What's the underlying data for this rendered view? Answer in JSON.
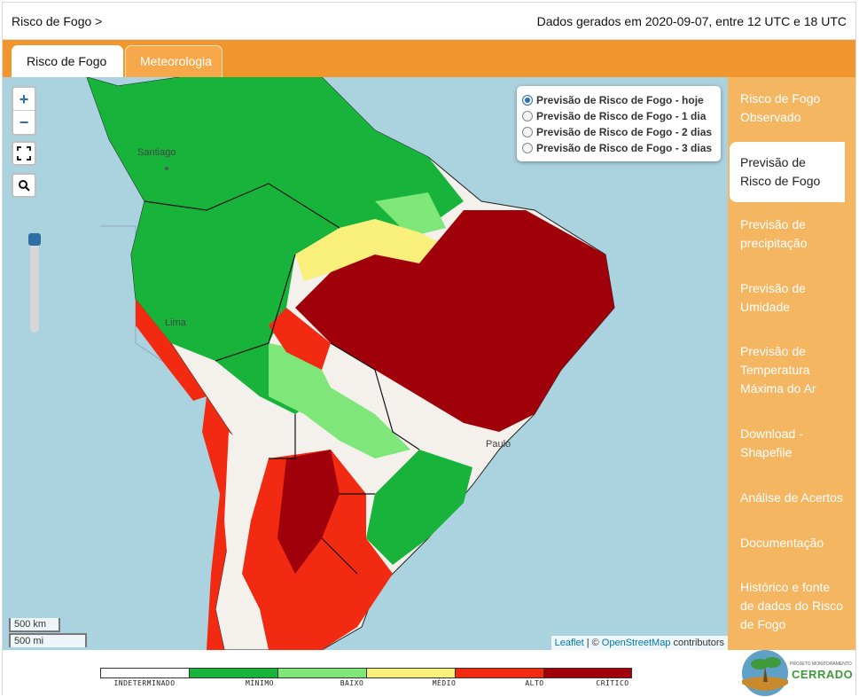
{
  "header": {
    "breadcrumb": "Risco de Fogo >",
    "generated": "Dados gerados em 2020-09-07, entre 12 UTC e 18 UTC"
  },
  "tabs": [
    {
      "label": "Risco de Fogo",
      "active": true
    },
    {
      "label": "Meteorologia",
      "active": false
    }
  ],
  "map": {
    "zoom_in": "+",
    "zoom_out": "−",
    "city_labels": [
      "Santiago",
      "Lima",
      "Paulo"
    ],
    "layer_options": [
      {
        "label": "Previsão de Risco de Fogo - hoje",
        "selected": true
      },
      {
        "label": "Previsão de Risco de Fogo - 1 dia",
        "selected": false
      },
      {
        "label": "Previsão de Risco de Fogo - 2 dias",
        "selected": false
      },
      {
        "label": "Previsão de Risco de Fogo - 3 dias",
        "selected": false
      }
    ],
    "scale_km": "500 km",
    "scale_mi": "500 mi",
    "attribution": {
      "leaflet": "Leaflet",
      "sep": "| ©",
      "osm": "OpenStreetMap",
      "suffix": "contributors"
    }
  },
  "sidebar": {
    "items": [
      {
        "label": "Risco de Fogo Observado",
        "active": false
      },
      {
        "label": "Previsão de Risco de Fogo",
        "active": true
      },
      {
        "label": "Previsão de precipitação",
        "active": false
      },
      {
        "label": "Previsão de Umidade",
        "active": false
      },
      {
        "label": "Previsão de Temperatura Máxima do Ar",
        "active": false
      },
      {
        "label": "Download - Shapefile",
        "active": false
      },
      {
        "label": "Análise de Acertos",
        "active": false
      },
      {
        "label": "Documentação",
        "active": false
      },
      {
        "label": "Histórico e fonte de dados do Risco de Fogo",
        "active": false
      }
    ]
  },
  "legend": [
    {
      "label": "INDETERMINADO",
      "color": "#ffffff"
    },
    {
      "label": "MÍNIMO",
      "color": "#17b33a"
    },
    {
      "label": "BAIXO",
      "color": "#7fe67a"
    },
    {
      "label": "MÉDIO",
      "color": "#f8f07a"
    },
    {
      "label": "ALTO",
      "color": "#f22a12"
    },
    {
      "label": "CRÍTICO",
      "color": "#a0000a"
    }
  ],
  "logo": {
    "subtitle": "PROJETO MONITORAMENTO",
    "name": "CERRADO"
  },
  "colors": {
    "accent": "#f0962c",
    "sidebar": "#f5b661",
    "ocean": "#abd3df"
  }
}
